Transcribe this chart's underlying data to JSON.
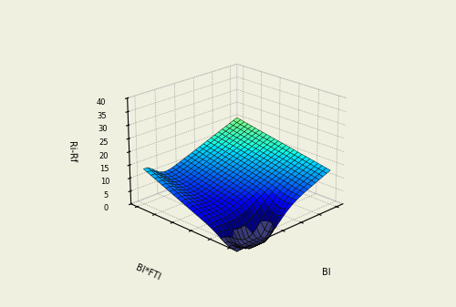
{
  "title": "",
  "xlabel": "BI",
  "ylabel": "BI*FTI",
  "zlabel": "Ri-Rf",
  "zlim": [
    0,
    40
  ],
  "zticks": [
    0,
    5,
    10,
    15,
    20,
    25,
    30,
    35,
    40
  ],
  "colormap": "jet",
  "background_color": "#f0f0e0",
  "elev": 22,
  "azim": -135,
  "nx": 25,
  "ny": 25,
  "x_range": [
    0,
    5
  ],
  "y_range": [
    0,
    5
  ]
}
